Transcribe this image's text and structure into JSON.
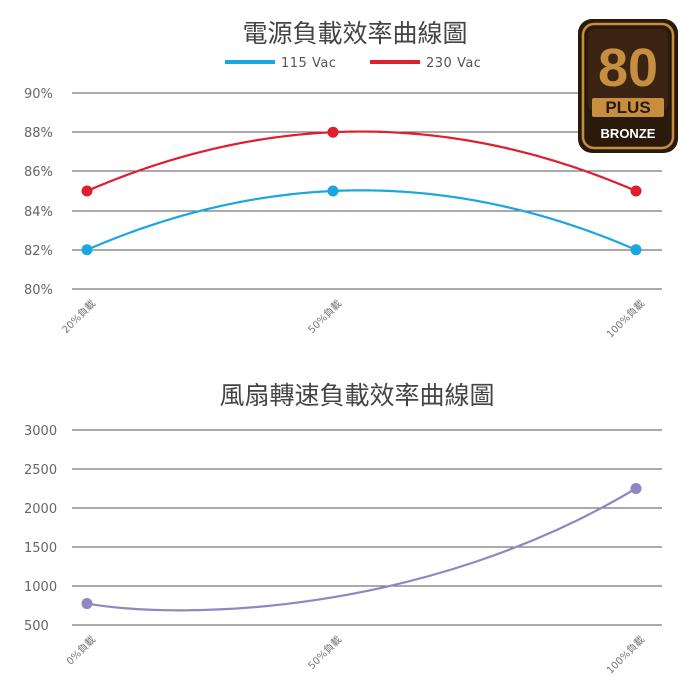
{
  "badge": {
    "number": "80",
    "plus": "PLUS",
    "level": "BRONZE",
    "colors": {
      "outer": "#2a1a0c",
      "ring": "#c68e3f",
      "inner": "#3b2413",
      "plate": "#c68e3f",
      "text_dark": "#2a1a0c",
      "text_light": "#ffffff"
    }
  },
  "chart_data": [
    {
      "type": "line",
      "title": "電源負載效率曲線圖",
      "categories": [
        "20%負載",
        "50%負載",
        "100%負載"
      ],
      "series": [
        {
          "name": "115 Vac",
          "values": [
            82,
            85,
            82
          ],
          "color": "#1aa7e0"
        },
        {
          "name": "230 Vac",
          "values": [
            85,
            88,
            85
          ],
          "color": "#e01f2d"
        }
      ],
      "yticks": [
        "90%",
        "88%",
        "86%",
        "84%",
        "82%",
        "80%"
      ],
      "ylim": [
        80,
        90
      ],
      "grid": true,
      "legend": "top-center",
      "xlabel": "",
      "ylabel": ""
    },
    {
      "type": "line",
      "title": "風扇轉速負載效率曲線圖",
      "categories": [
        "0%負載",
        "50%負載",
        "100%負載"
      ],
      "series": [
        {
          "points": [
            [
              0,
              775
            ],
            [
              100,
              2250
            ]
          ],
          "color": "#8f86c4"
        }
      ],
      "yticks": [
        "3000",
        "2500",
        "2000",
        "1500",
        "1000",
        "500"
      ],
      "ylim": [
        500,
        3000
      ],
      "grid": true,
      "xlabel": "",
      "ylabel": ""
    }
  ]
}
